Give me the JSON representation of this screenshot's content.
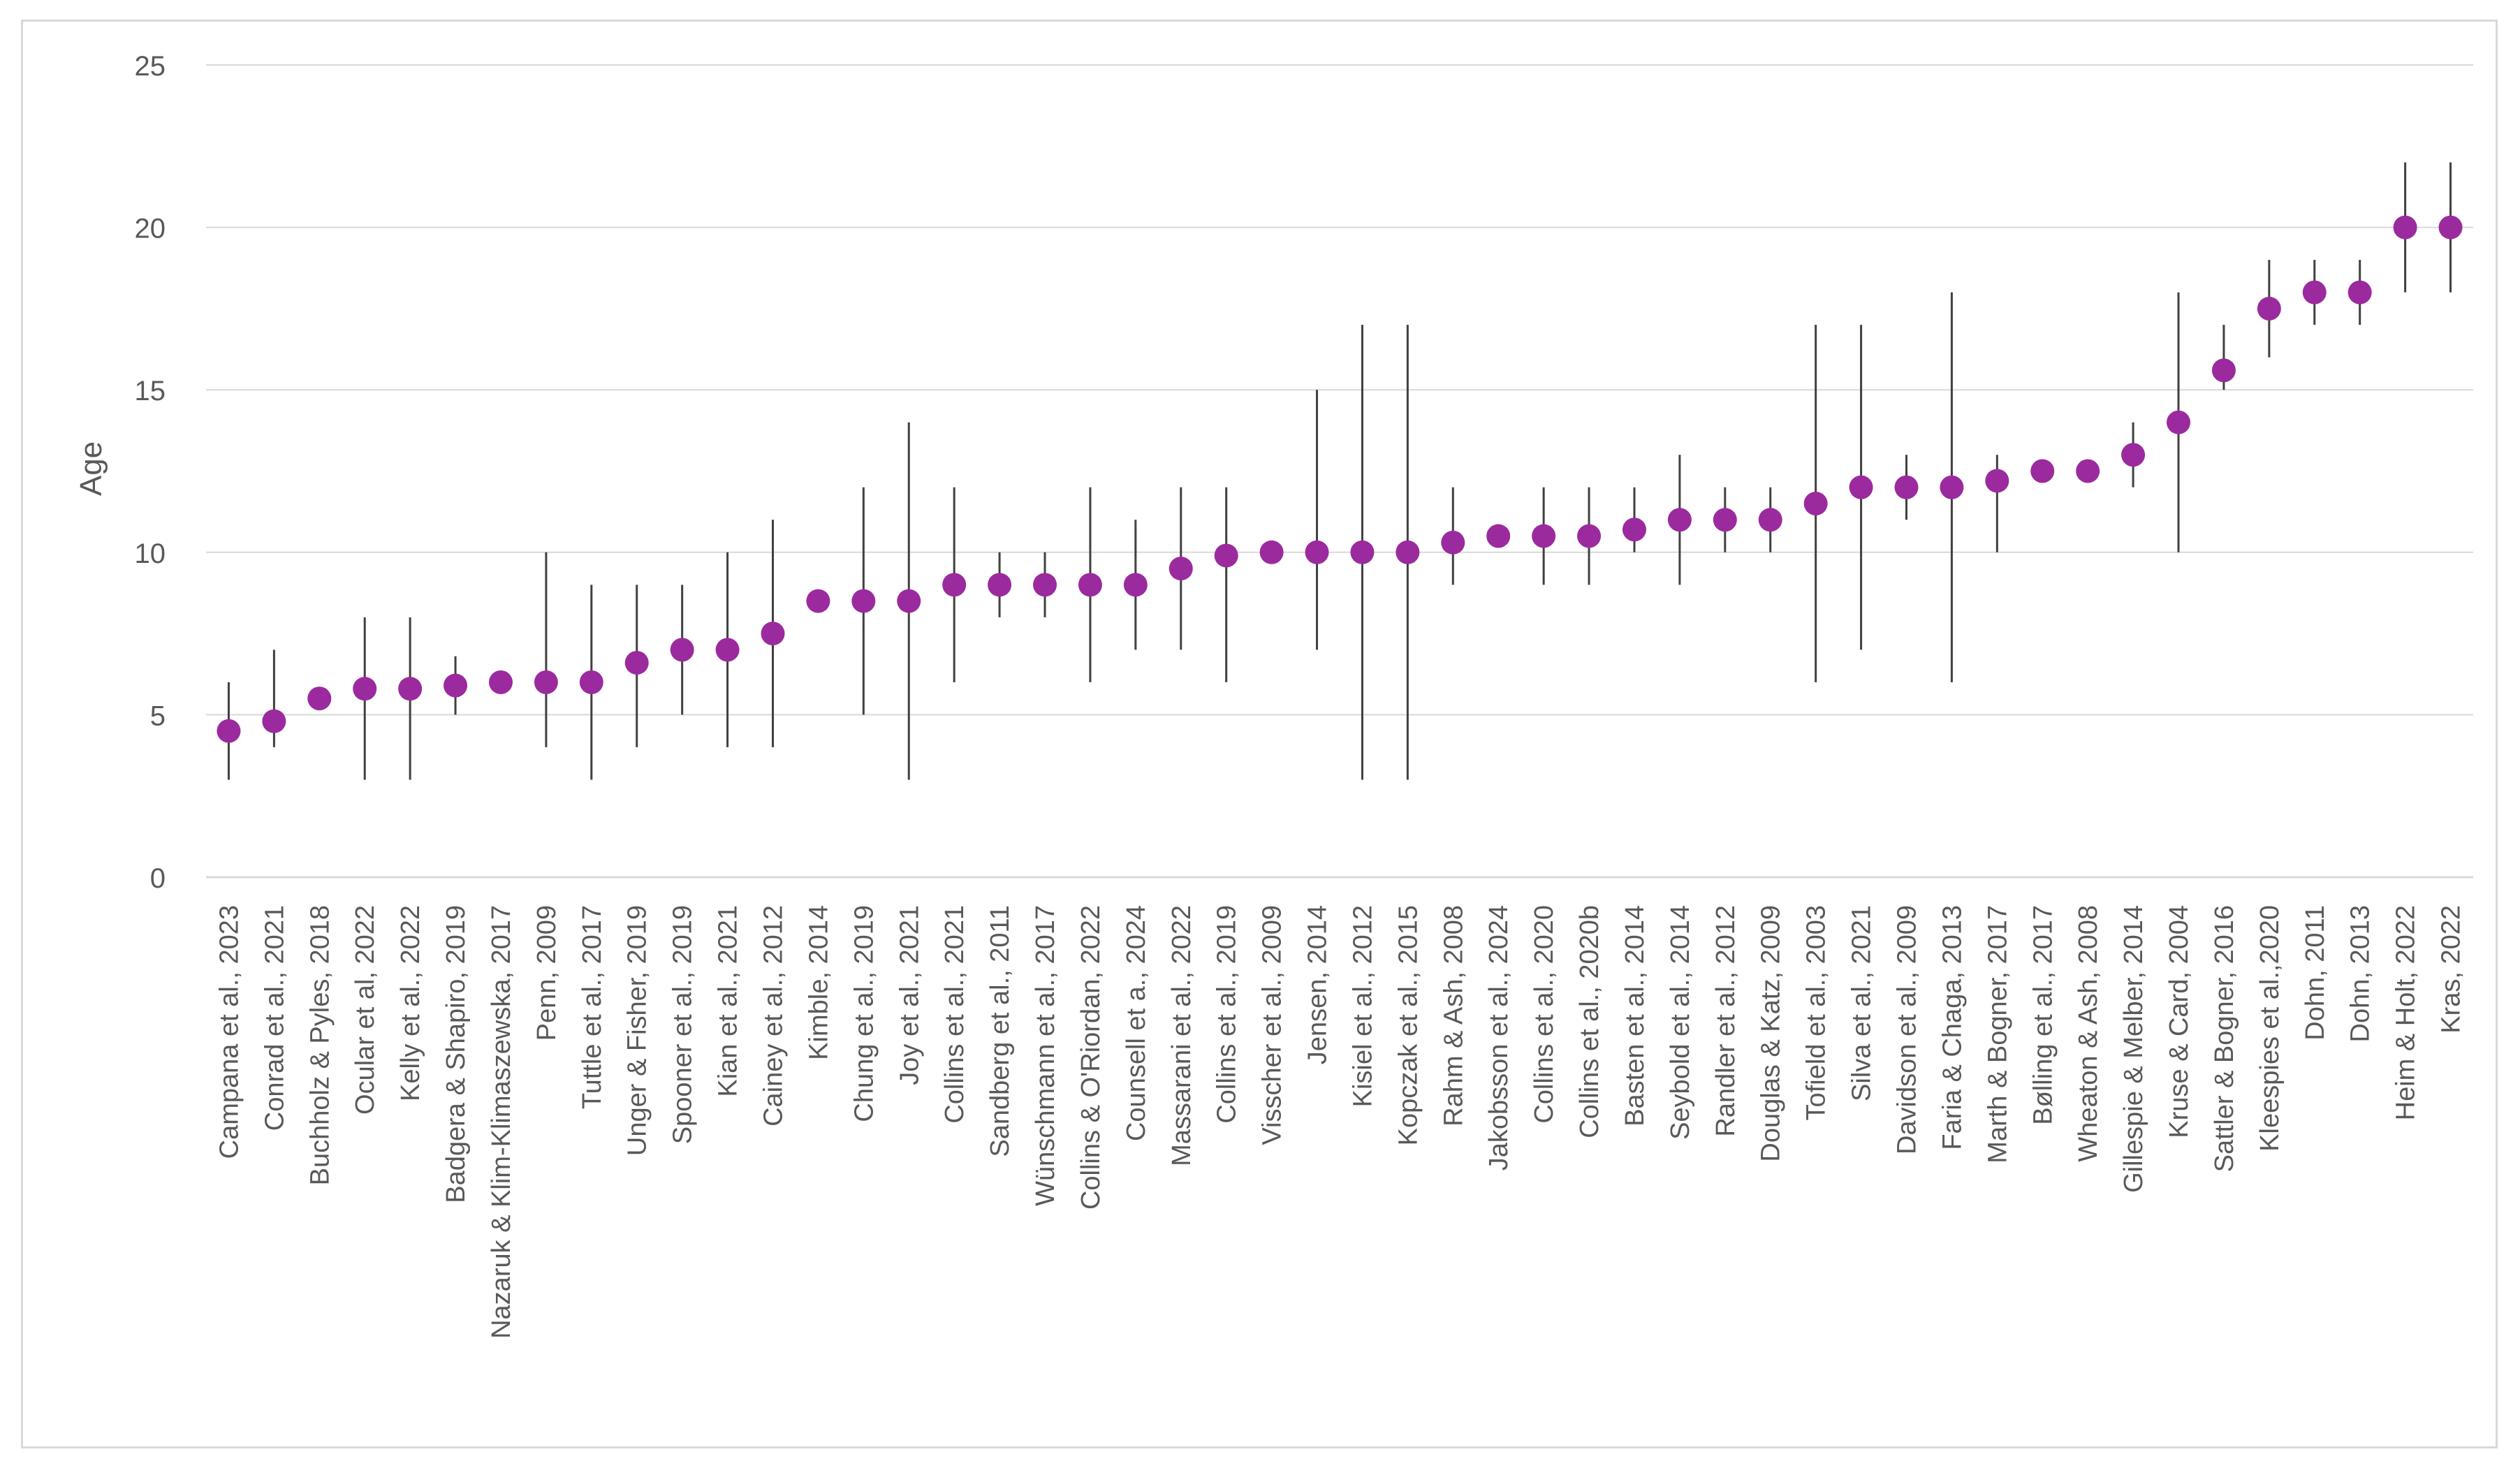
{
  "chart_data": {
    "type": "scatter",
    "title": "",
    "xlabel": "",
    "ylabel": "Age",
    "ylim": [
      0,
      25
    ],
    "yticks": [
      0,
      5,
      10,
      15,
      20,
      25
    ],
    "grid": true,
    "legend": "none",
    "marker_color": "#9b2a9e",
    "errorbar_color": "#404040",
    "gridline_color": "#d9d9d9",
    "categories": [
      "Campana et al., 2023",
      "Conrad et al., 2021",
      "Buchholz & Pyles, 2018",
      "Ocular et al, 2022",
      "Kelly et al., 2022",
      "Badgera & Shapiro, 2019",
      "Nazaruk & Klim-Klimaszewska, 2017",
      "Penn, 2009",
      "Tuttle et al., 2017",
      "Unger & Fisher, 2019",
      "Spooner et al., 2019",
      "Kian et al., 2021",
      "Cainey et al., 2012",
      "Kimble, 2014",
      "Chung et al., 2019",
      "Joy et al., 2021",
      "Collins et al., 2021",
      "Sandberg et al., 2011",
      "Wünschmann et al., 2017",
      "Collins & O'Riordan, 2022",
      "Counsell et a., 2024",
      "Massarani et al., 2022",
      "Collins et al., 2019",
      "Visscher et al., 2009",
      "Jensen, 2014",
      "Kisiel et al., 2012",
      "Kopczak et al., 2015",
      "Rahm & Ash, 2008",
      "Jakobsson et al., 2024",
      "Collins et al., 2020",
      "Collins et al., 2020b",
      "Basten et al., 2014",
      "Seybold et al., 2014",
      "Randler et al., 2012",
      "Douglas & Katz, 2009",
      "Tofield et al., 2003",
      "Silva et al., 2021",
      "Davidson et al., 2009",
      "Faria & Chaga, 2013",
      "Marth & Bogner, 2017",
      "Bølling et al., 2017",
      "Wheaton & Ash, 2008",
      "Gillespie & Melber, 2014",
      "Kruse & Card, 2004",
      "Sattler & Bogner, 2016",
      "Kleespies et al.,2020",
      "Dohn, 2011",
      "Dohn, 2013",
      "Heim & Holt, 2022",
      "Kras, 2022"
    ],
    "series": [
      {
        "name": "Age",
        "values": [
          4.5,
          4.8,
          5.5,
          5.8,
          5.8,
          5.9,
          6.0,
          6.0,
          6.0,
          6.6,
          7.0,
          7.0,
          7.5,
          8.5,
          8.5,
          8.5,
          9.0,
          9.0,
          9.0,
          9.0,
          9.0,
          9.5,
          9.9,
          10.0,
          10.0,
          10.0,
          10.0,
          10.3,
          10.5,
          10.5,
          10.5,
          10.7,
          11.0,
          11.0,
          11.0,
          11.5,
          12.0,
          12.0,
          12.0,
          12.2,
          12.5,
          12.5,
          13.0,
          14.0,
          15.6,
          17.5,
          18.0,
          18.0,
          20.0,
          20.0
        ],
        "min": [
          3,
          4,
          5.5,
          3,
          3,
          5,
          6,
          4,
          3,
          4,
          5,
          4,
          4,
          8.5,
          5,
          3,
          6,
          8,
          8,
          6,
          7,
          7,
          6,
          10,
          7,
          3,
          3,
          9,
          10.5,
          9,
          9,
          10,
          9,
          10,
          10,
          6,
          7,
          11,
          6,
          10,
          12.5,
          12.5,
          12,
          10,
          15,
          16,
          17,
          17,
          18,
          18
        ],
        "max": [
          6,
          7,
          5.5,
          8,
          8,
          6.8,
          6,
          10,
          9,
          9,
          9,
          10,
          11,
          8.5,
          12,
          14,
          12,
          10,
          10,
          12,
          11,
          12,
          12,
          10,
          15,
          17,
          17,
          12,
          10.5,
          12,
          12,
          12,
          13,
          12,
          12,
          17,
          17,
          13,
          18,
          13,
          12.5,
          12.5,
          14,
          18,
          17,
          19,
          19,
          19,
          22,
          22
        ]
      }
    ]
  }
}
